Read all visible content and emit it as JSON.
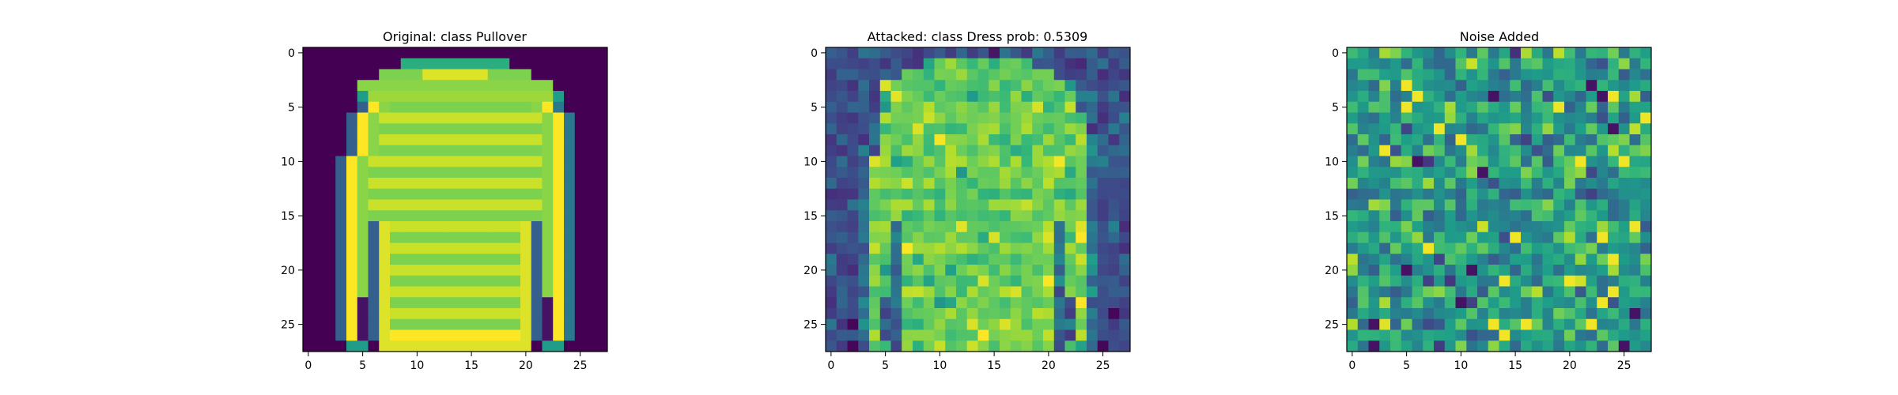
{
  "chart_data": [
    {
      "type": "heatmap",
      "title": "Original: class Pullover",
      "image": "original",
      "colormap": "viridis",
      "rows": 28,
      "cols": 28,
      "xlim": [
        -0.5,
        27.5
      ],
      "ylim": [
        27.5,
        -0.5
      ],
      "xticks": [
        0,
        5,
        10,
        15,
        20,
        25
      ],
      "yticks": [
        0,
        5,
        10,
        15,
        20,
        25
      ]
    },
    {
      "type": "heatmap",
      "title": "Attacked: class Dress prob: 0.5309",
      "image": "attacked",
      "colormap": "viridis",
      "rows": 28,
      "cols": 28,
      "xlim": [
        -0.5,
        27.5
      ],
      "ylim": [
        27.5,
        -0.5
      ],
      "xticks": [
        0,
        5,
        10,
        15,
        20,
        25
      ],
      "yticks": [
        0,
        5,
        10,
        15,
        20,
        25
      ]
    },
    {
      "type": "heatmap",
      "title": "Noise Added",
      "image": "noise",
      "colormap": "viridis",
      "rows": 28,
      "cols": 28,
      "xlim": [
        -0.5,
        27.5
      ],
      "ylim": [
        27.5,
        -0.5
      ],
      "xticks": [
        0,
        5,
        10,
        15,
        20,
        25
      ],
      "yticks": [
        0,
        5,
        10,
        15,
        20,
        25
      ]
    }
  ]
}
